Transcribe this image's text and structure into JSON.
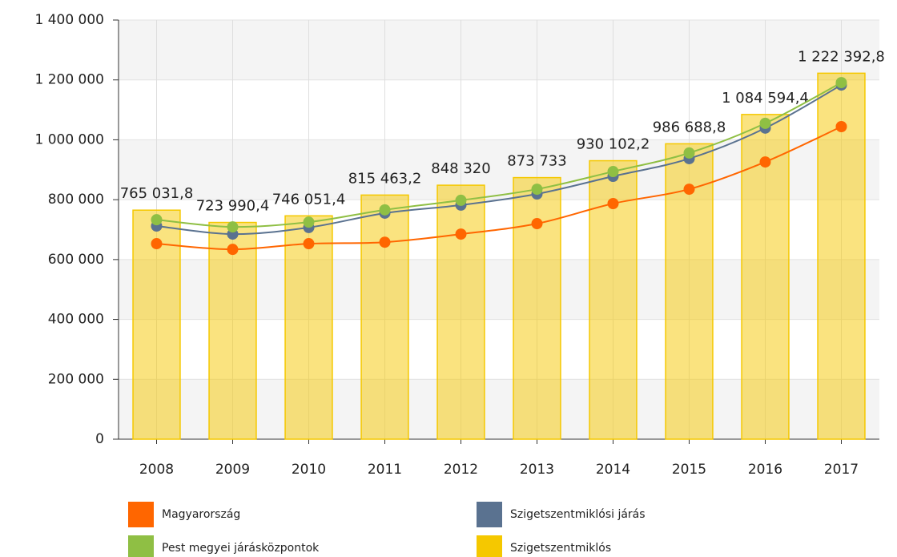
{
  "chart_data": {
    "type": "bar",
    "categories": [
      "2008",
      "2009",
      "2010",
      "2011",
      "2012",
      "2013",
      "2014",
      "2015",
      "2016",
      "2017"
    ],
    "series": [
      {
        "name": "Magyarország",
        "type": "line",
        "color": "#ff6600",
        "values": [
          653000,
          634000,
          653000,
          658000,
          685000,
          720000,
          787000,
          835000,
          926000,
          1044000
        ]
      },
      {
        "name": "Szigetszentmiklósi járás",
        "type": "line",
        "color": "#5a7290",
        "values": [
          712000,
          685000,
          707000,
          755000,
          782000,
          819000,
          878000,
          937000,
          1039000,
          1183000
        ]
      },
      {
        "name": "Pest megyei járásközpontok",
        "type": "line",
        "color": "#8fbf44",
        "values": [
          733000,
          709000,
          725000,
          766000,
          798000,
          835000,
          894000,
          956000,
          1055000,
          1191000
        ]
      },
      {
        "name": "Szigetszentmiklós",
        "type": "bar",
        "color": "#f5c800",
        "values": [
          765031.8,
          723990.4,
          746051.4,
          815463.2,
          848320,
          873733,
          930102.2,
          986688.8,
          1084594.4,
          1222392.8
        ],
        "value_labels": [
          "765 031,8",
          "723 990,4",
          "746 051,4",
          "815 463,2",
          "848 320",
          "873 733",
          "930 102,2",
          "986 688,8",
          "1 084 594,4",
          "1 222 392,8"
        ]
      }
    ],
    "ylim": [
      0,
      1400000
    ],
    "yticks": [
      0,
      {
        "value": 200000,
        "label": "200 000"
      },
      {
        "value": 400000,
        "label": "400 000"
      },
      {
        "value": 600000,
        "label": "600 000"
      },
      {
        "value": 800000,
        "label": "800 000"
      },
      {
        "value": 1000000,
        "label": "1 000 000"
      },
      {
        "value": 1200000,
        "label": "1 200 000"
      },
      {
        "value": 1400000,
        "label": "1 400 000"
      }
    ],
    "grid": true
  }
}
